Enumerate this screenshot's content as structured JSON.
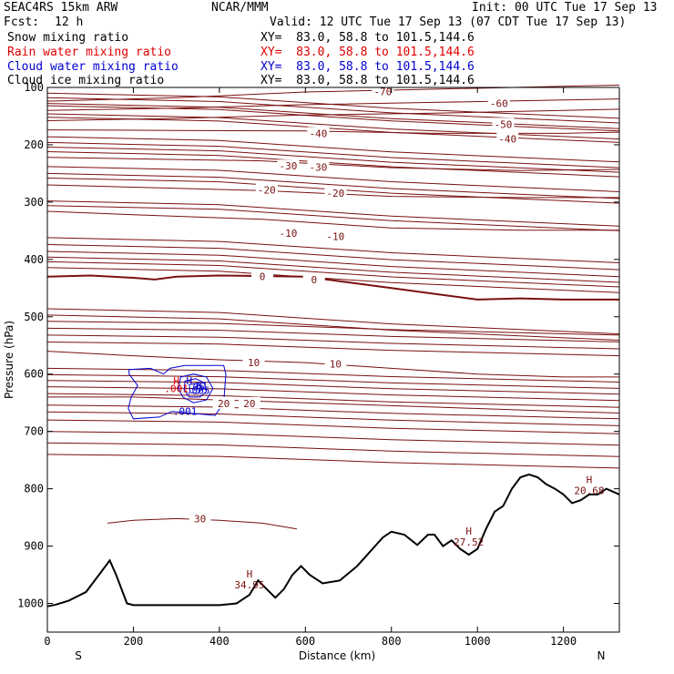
{
  "header": {
    "model": "SEAC4RS 15km ARW",
    "org": "NCAR/MMM",
    "init": "Init: 00 UTC Tue 17 Sep 13",
    "fcst_label": "Fcst:",
    "fcst_value": "12 h",
    "valid": "Valid: 12 UTC Tue 17 Sep 13 (07 CDT Tue 17 Sep 13)",
    "fields": [
      {
        "name": "Snow mixing ratio",
        "xy": "XY=  83.0, 58.8 to 101.5,144.6",
        "color": "#000000"
      },
      {
        "name": "Rain water mixing ratio",
        "xy": "XY=  83.0, 58.8 to 101.5,144.6",
        "color": "#e00000"
      },
      {
        "name": "Cloud water mixing ratio",
        "xy": "XY=  83.0, 58.8 to 101.5,144.6",
        "color": "#0000d0"
      },
      {
        "name": "Cloud ice mixing ratio",
        "xy": "XY=  83.0, 58.8 to 101.5,144.6",
        "color": "#000000"
      }
    ]
  },
  "chart_data": {
    "type": "cross-section contour",
    "xlabel": "Distance (km)",
    "ylabel": "Pressure (hPa)",
    "xlim": [
      0,
      1330
    ],
    "ylim": [
      100,
      1050
    ],
    "x_ticks": [
      0,
      200,
      400,
      600,
      800,
      1000,
      1200
    ],
    "y_ticks": [
      100,
      200,
      300,
      400,
      500,
      600,
      700,
      800,
      900,
      1000
    ],
    "x_end_labels": {
      "left": "S",
      "right": "N"
    },
    "colors": {
      "temperature": "#7a1010",
      "cloud_water": "#0000d0",
      "rain": "#e00000",
      "terrain": "#000000"
    },
    "terrain": [
      [
        0,
        1005
      ],
      [
        20,
        1002
      ],
      [
        50,
        995
      ],
      [
        90,
        980
      ],
      [
        120,
        950
      ],
      [
        145,
        925
      ],
      [
        160,
        950
      ],
      [
        185,
        1000
      ],
      [
        200,
        1003
      ],
      [
        300,
        1003
      ],
      [
        400,
        1003
      ],
      [
        440,
        1000
      ],
      [
        470,
        985
      ],
      [
        490,
        960
      ],
      [
        510,
        975
      ],
      [
        530,
        990
      ],
      [
        550,
        975
      ],
      [
        570,
        950
      ],
      [
        590,
        935
      ],
      [
        610,
        950
      ],
      [
        640,
        965
      ],
      [
        680,
        960
      ],
      [
        720,
        935
      ],
      [
        750,
        910
      ],
      [
        780,
        885
      ],
      [
        800,
        875
      ],
      [
        830,
        880
      ],
      [
        860,
        898
      ],
      [
        885,
        880
      ],
      [
        900,
        880
      ],
      [
        920,
        900
      ],
      [
        940,
        890
      ],
      [
        960,
        905
      ],
      [
        980,
        915
      ],
      [
        1000,
        905
      ],
      [
        1020,
        870
      ],
      [
        1040,
        840
      ],
      [
        1060,
        830
      ],
      [
        1080,
        800
      ],
      [
        1100,
        780
      ],
      [
        1120,
        775
      ],
      [
        1140,
        780
      ],
      [
        1160,
        792
      ],
      [
        1180,
        800
      ],
      [
        1200,
        810
      ],
      [
        1220,
        825
      ],
      [
        1240,
        820
      ],
      [
        1260,
        810
      ],
      [
        1280,
        810
      ],
      [
        1300,
        800
      ],
      [
        1330,
        810
      ]
    ],
    "isotherms": [
      {
        "t": -70,
        "points": [
          [
            0,
            124
          ],
          [
            300,
            118
          ],
          [
            600,
            108
          ],
          [
            900,
            103
          ],
          [
            1200,
            98
          ],
          [
            1330,
            96
          ]
        ],
        "label_at": [
          [
            780,
            107
          ]
        ]
      },
      {
        "t": -60,
        "points": [
          [
            0,
            140
          ],
          [
            300,
            136
          ],
          [
            600,
            130
          ],
          [
            900,
            126
          ],
          [
            1200,
            122
          ],
          [
            1330,
            120
          ]
        ],
        "label_at": [
          [
            1050,
            128
          ]
        ]
      },
      {
        "t": -50,
        "points": [
          [
            0,
            158
          ],
          [
            300,
            154
          ],
          [
            600,
            148
          ],
          [
            900,
            145
          ],
          [
            1200,
            140
          ],
          [
            1330,
            138
          ]
        ],
        "label_at": [
          [
            1060,
            164
          ]
        ]
      },
      {
        "t": -40,
        "points": [
          [
            0,
            174
          ],
          [
            300,
            175
          ],
          [
            600,
            176
          ],
          [
            900,
            180
          ],
          [
            1200,
            180
          ],
          [
            1330,
            178
          ]
        ],
        "label_at": [
          [
            630,
            180
          ],
          [
            1070,
            190
          ]
        ]
      },
      {
        "t": -30,
        "points": [
          [
            0,
            222
          ],
          [
            250,
            225
          ],
          [
            500,
            228
          ],
          [
            800,
            240
          ],
          [
            1100,
            245
          ],
          [
            1330,
            243
          ]
        ],
        "label_at": [
          [
            560,
            237
          ],
          [
            630,
            239
          ]
        ]
      },
      {
        "t": -20,
        "points": [
          [
            0,
            270
          ],
          [
            200,
            274
          ],
          [
            500,
            280
          ],
          [
            800,
            290
          ],
          [
            1100,
            292
          ],
          [
            1330,
            292
          ]
        ],
        "label_at": [
          [
            510,
            279
          ],
          [
            670,
            284
          ]
        ]
      },
      {
        "t": -10,
        "points": [
          [
            0,
            316
          ],
          [
            200,
            322
          ],
          [
            500,
            330
          ],
          [
            800,
            345
          ],
          [
            1100,
            349
          ],
          [
            1330,
            349
          ]
        ],
        "label_at": [
          [
            560,
            354
          ],
          [
            670,
            360
          ]
        ]
      },
      {
        "t": 0,
        "points": [
          [
            0,
            430
          ],
          [
            100,
            428
          ],
          [
            200,
            432
          ],
          [
            250,
            435
          ],
          [
            300,
            430
          ],
          [
            400,
            428
          ],
          [
            600,
            430
          ],
          [
            700,
            440
          ],
          [
            800,
            450
          ],
          [
            900,
            460
          ],
          [
            1000,
            470
          ],
          [
            1100,
            468
          ],
          [
            1200,
            470
          ],
          [
            1330,
            470
          ]
        ],
        "label_at": [
          [
            500,
            430
          ],
          [
            620,
            435
          ]
        ]
      },
      {
        "t": 10,
        "points": [
          [
            0,
            560
          ],
          [
            200,
            568
          ],
          [
            400,
            575
          ],
          [
            600,
            580
          ],
          [
            800,
            590
          ],
          [
            1000,
            600
          ],
          [
            1200,
            605
          ],
          [
            1330,
            605
          ]
        ],
        "label_at": [
          [
            480,
            580
          ],
          [
            670,
            582
          ]
        ]
      },
      {
        "t": 20,
        "points": [
          [
            0,
            640
          ],
          [
            200,
            640
          ],
          [
            400,
            645
          ],
          [
            600,
            650
          ],
          [
            800,
            655
          ],
          [
            1000,
            660
          ],
          [
            1200,
            665
          ],
          [
            1330,
            668
          ]
        ],
        "label_at": [
          [
            410,
            651
          ],
          [
            470,
            651
          ]
        ]
      },
      {
        "t": 30,
        "points": [
          [
            140,
            860
          ],
          [
            200,
            855
          ],
          [
            300,
            852
          ],
          [
            400,
            855
          ],
          [
            500,
            860
          ],
          [
            580,
            870
          ]
        ],
        "label_at": [
          [
            355,
            852
          ]
        ]
      }
    ],
    "unlabeled_temperature_lines_hPa": [
      118,
      110,
      128,
      132,
      146,
      152,
      186,
      196,
      204,
      212,
      238,
      250,
      258,
      298,
      306,
      362,
      374,
      386,
      396,
      404,
      414,
      486,
      497,
      508,
      520,
      532,
      544,
      590,
      601,
      611,
      622,
      634,
      654,
      666,
      680,
      700,
      720,
      740
    ],
    "cloud_water_contour_levels": [
      0.001,
      0.005,
      0.01,
      0.05
    ],
    "cloud_water_labels": [
      ".001",
      ".005",
      ".01",
      ".05"
    ],
    "rain_labels": [
      ".001",
      ".005"
    ],
    "extrema": [
      {
        "label": "H",
        "value": "",
        "x": 300,
        "p": 618,
        "color": "#e00000"
      },
      {
        "label": "H",
        "value": "",
        "x": 330,
        "p": 618,
        "color": "#0000d0"
      },
      {
        "label": "H",
        "value": "34.95",
        "x": 470,
        "p": 955,
        "color": "#7a1010"
      },
      {
        "label": "H",
        "value": "27.52",
        "x": 980,
        "p": 880,
        "color": "#7a1010"
      },
      {
        "label": "H",
        "value": "20.68",
        "x": 1260,
        "p": 790,
        "color": "#7a1010"
      }
    ],
    "labels_text": {
      "cloud_value_1": ".001",
      "cloud_value_2": ".005",
      "cloud_value_3": ".01",
      "cloud_value_4": ".05",
      "cloud_value_5": ".001"
    }
  }
}
